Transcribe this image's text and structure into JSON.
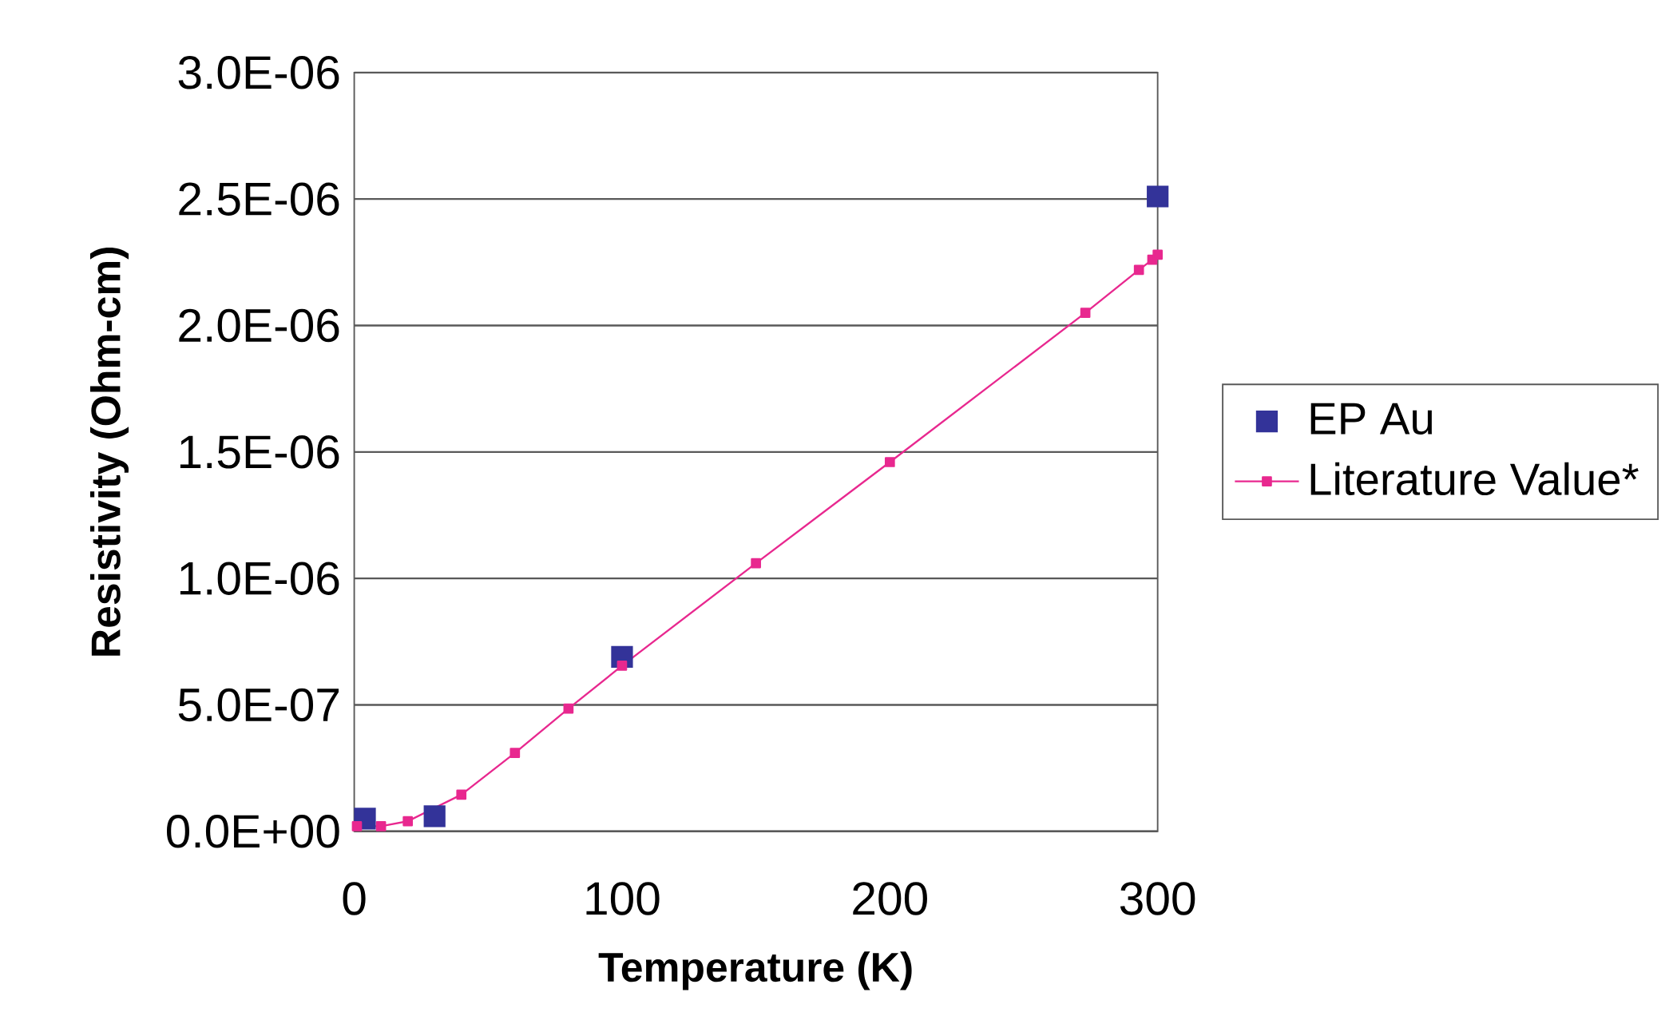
{
  "chart_data": {
    "type": "scatter",
    "xlabel": "Temperature (K)",
    "ylabel": "Resistivity (Ohm-cm)",
    "xlim": [
      0,
      300
    ],
    "xticks": [
      0,
      100,
      200,
      300
    ],
    "ylim": [
      0,
      3e-06
    ],
    "yticks": [
      {
        "value": 0,
        "label": "0.0E+00"
      },
      {
        "value": 5e-07,
        "label": "5.0E-07"
      },
      {
        "value": 1e-06,
        "label": "1.0E-06"
      },
      {
        "value": 1.5e-06,
        "label": "1.5E-06"
      },
      {
        "value": 2e-06,
        "label": "2.0E-06"
      },
      {
        "value": 2.5e-06,
        "label": "2.5E-06"
      },
      {
        "value": 3e-06,
        "label": "3.0E-06"
      }
    ],
    "grid": "y",
    "legend": "right",
    "marker": "square",
    "series": [
      {
        "name": "EP Au",
        "color": "#333399",
        "x": [
          4,
          30,
          100,
          300
        ],
        "values": [
          5e-08,
          6e-08,
          6.9e-07,
          2.51e-06
        ]
      },
      {
        "name": "Literature Value*",
        "type": "line",
        "color": "#e8288f",
        "x": [
          1,
          10,
          20,
          40,
          60,
          80,
          100,
          150,
          200,
          273,
          293,
          298,
          300
        ],
        "values": [
          2e-08,
          2e-08,
          4e-08,
          1.45e-07,
          3.1e-07,
          4.85e-07,
          6.55e-07,
          1.06e-06,
          1.46e-06,
          2.05e-06,
          2.22e-06,
          2.26e-06,
          2.28e-06
        ]
      }
    ]
  }
}
